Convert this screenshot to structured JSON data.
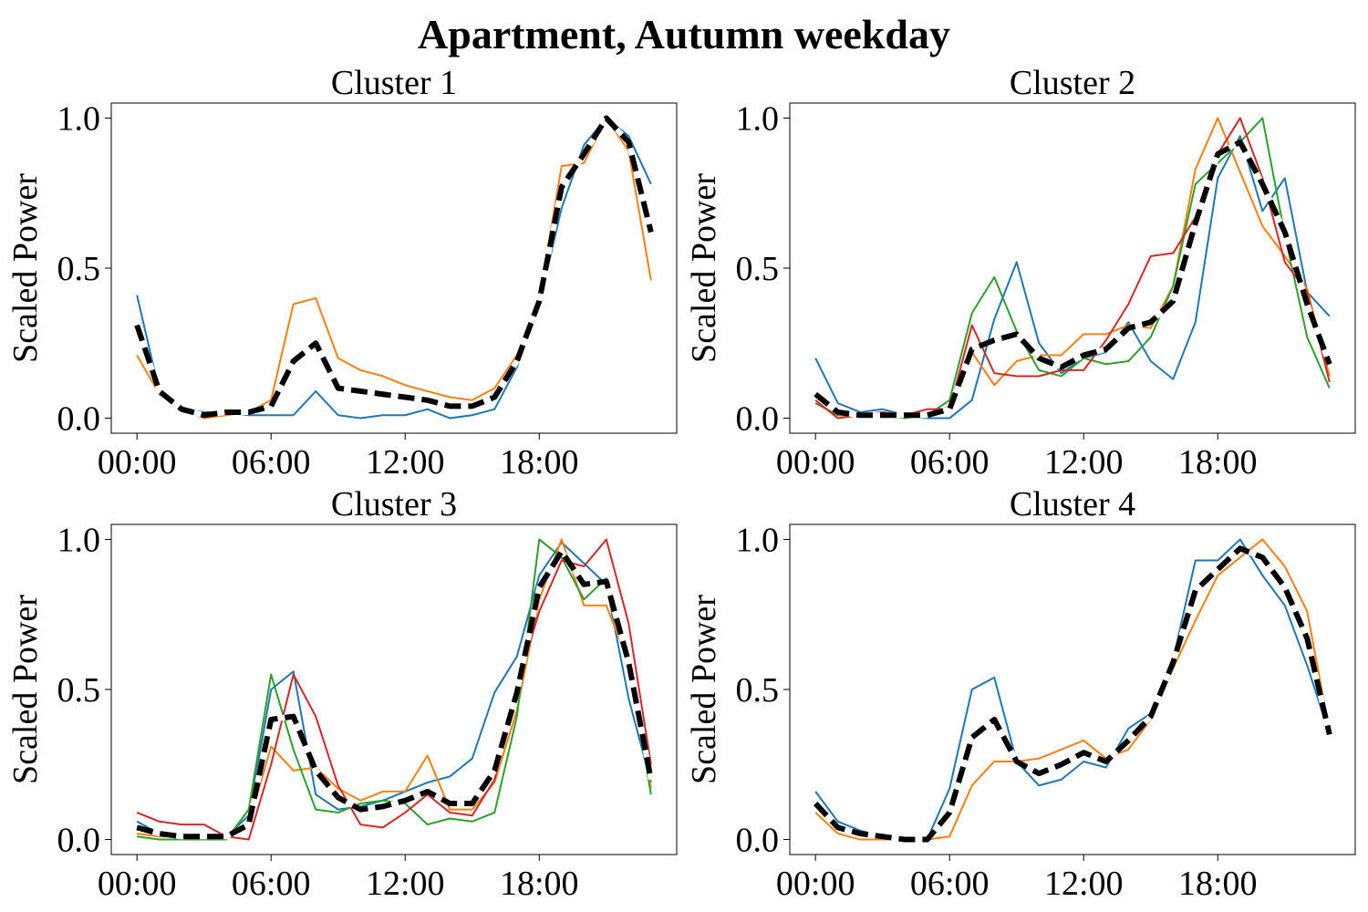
{
  "figure": {
    "suptitle": "Apartment, Autumn weekday"
  },
  "chart_data": [
    {
      "type": "line",
      "title": "Cluster 1",
      "xlabel": "",
      "ylabel": "Scaled Power",
      "x": [
        0,
        1,
        2,
        3,
        4,
        5,
        6,
        7,
        8,
        9,
        10,
        11,
        12,
        13,
        14,
        15,
        16,
        17,
        18,
        19,
        20,
        21,
        22,
        23
      ],
      "x_ticks": [
        0,
        6,
        12,
        18
      ],
      "x_tick_labels": [
        "00:00",
        "06:00",
        "12:00",
        "18:00"
      ],
      "y_ticks": [
        0.0,
        0.5,
        1.0
      ],
      "y_tick_labels": [
        "0.0",
        "0.5",
        "1.0"
      ],
      "xlim": [
        -1.15,
        24.15
      ],
      "ylim": [
        -0.05,
        1.05
      ],
      "grid": false,
      "series": [
        {
          "color": "#1f77b4",
          "style": "solid",
          "values": [
            0.41,
            0.09,
            0.03,
            0.02,
            0.02,
            0.01,
            0.01,
            0.01,
            0.09,
            0.01,
            0.0,
            0.01,
            0.01,
            0.03,
            0.0,
            0.01,
            0.03,
            0.17,
            0.38,
            0.7,
            0.91,
            1.0,
            0.94,
            0.78
          ]
        },
        {
          "color": "#ff7f0e",
          "style": "solid",
          "values": [
            0.21,
            0.08,
            0.03,
            0.0,
            0.01,
            0.02,
            0.06,
            0.38,
            0.4,
            0.2,
            0.16,
            0.14,
            0.11,
            0.09,
            0.07,
            0.06,
            0.1,
            0.21,
            0.4,
            0.84,
            0.85,
            1.0,
            0.89,
            0.46
          ]
        },
        {
          "color": "#000000",
          "style": "mean",
          "values": [
            0.31,
            0.09,
            0.03,
            0.01,
            0.02,
            0.02,
            0.04,
            0.19,
            0.25,
            0.1,
            0.09,
            0.08,
            0.07,
            0.06,
            0.04,
            0.04,
            0.07,
            0.19,
            0.39,
            0.77,
            0.88,
            1.0,
            0.92,
            0.62
          ]
        }
      ]
    },
    {
      "type": "line",
      "title": "Cluster 2",
      "xlabel": "",
      "ylabel": "Scaled Power",
      "x": [
        0,
        1,
        2,
        3,
        4,
        5,
        6,
        7,
        8,
        9,
        10,
        11,
        12,
        13,
        14,
        15,
        16,
        17,
        18,
        19,
        20,
        21,
        22,
        23
      ],
      "x_ticks": [
        0,
        6,
        12,
        18
      ],
      "x_tick_labels": [
        "00:00",
        "06:00",
        "12:00",
        "18:00"
      ],
      "y_ticks": [
        0.0,
        0.5,
        1.0
      ],
      "y_tick_labels": [
        "0.0",
        "0.5",
        "1.0"
      ],
      "xlim": [
        -1.15,
        24.15
      ],
      "ylim": [
        -0.05,
        1.05
      ],
      "grid": false,
      "series": [
        {
          "color": "#1f77b4",
          "style": "solid",
          "values": [
            0.2,
            0.05,
            0.02,
            0.03,
            0.01,
            0.0,
            0.0,
            0.06,
            0.33,
            0.52,
            0.25,
            0.15,
            0.2,
            0.22,
            0.32,
            0.19,
            0.13,
            0.32,
            0.8,
            0.94,
            0.69,
            0.8,
            0.42,
            0.34
          ]
        },
        {
          "color": "#ff7f0e",
          "style": "solid",
          "values": [
            0.05,
            0.01,
            0.01,
            0.02,
            0.0,
            0.01,
            0.04,
            0.22,
            0.11,
            0.19,
            0.21,
            0.21,
            0.28,
            0.28,
            0.31,
            0.3,
            0.44,
            0.83,
            1.0,
            0.82,
            0.64,
            0.54,
            0.43,
            0.14
          ]
        },
        {
          "color": "#2ca02c",
          "style": "solid",
          "values": [
            0.05,
            0.01,
            0.01,
            0.01,
            0.0,
            0.01,
            0.06,
            0.35,
            0.47,
            0.29,
            0.16,
            0.14,
            0.2,
            0.18,
            0.19,
            0.27,
            0.44,
            0.78,
            0.85,
            0.92,
            1.0,
            0.61,
            0.27,
            0.1
          ]
        },
        {
          "color": "#d62728",
          "style": "solid",
          "values": [
            0.06,
            0.0,
            0.01,
            0.02,
            0.01,
            0.03,
            0.03,
            0.31,
            0.15,
            0.14,
            0.14,
            0.16,
            0.16,
            0.26,
            0.38,
            0.54,
            0.55,
            0.67,
            0.88,
            1.0,
            0.8,
            0.52,
            0.42,
            0.12
          ]
        },
        {
          "color": "#000000",
          "style": "mean",
          "values": [
            0.08,
            0.02,
            0.01,
            0.01,
            0.01,
            0.01,
            0.03,
            0.23,
            0.26,
            0.28,
            0.2,
            0.17,
            0.21,
            0.23,
            0.3,
            0.32,
            0.39,
            0.65,
            0.88,
            0.92,
            0.78,
            0.62,
            0.38,
            0.18
          ]
        }
      ]
    },
    {
      "type": "line",
      "title": "Cluster 3",
      "xlabel": "",
      "ylabel": "Scaled Power",
      "x": [
        0,
        1,
        2,
        3,
        4,
        5,
        6,
        7,
        8,
        9,
        10,
        11,
        12,
        13,
        14,
        15,
        16,
        17,
        18,
        19,
        20,
        21,
        22,
        23
      ],
      "x_ticks": [
        0,
        6,
        12,
        18
      ],
      "x_tick_labels": [
        "00:00",
        "06:00",
        "12:00",
        "18:00"
      ],
      "y_ticks": [
        0.0,
        0.5,
        1.0
      ],
      "y_tick_labels": [
        "0.0",
        "0.5",
        "1.0"
      ],
      "xlim": [
        -1.15,
        24.15
      ],
      "ylim": [
        -0.05,
        1.05
      ],
      "grid": false,
      "series": [
        {
          "color": "#1f77b4",
          "style": "solid",
          "values": [
            0.06,
            0.02,
            0.01,
            0.01,
            0.01,
            0.08,
            0.5,
            0.56,
            0.15,
            0.1,
            0.11,
            0.13,
            0.16,
            0.19,
            0.21,
            0.27,
            0.49,
            0.61,
            0.88,
            0.99,
            0.92,
            0.85,
            0.47,
            0.19
          ]
        },
        {
          "color": "#ff7f0e",
          "style": "solid",
          "values": [
            0.02,
            0.01,
            0.01,
            0.0,
            0.01,
            0.05,
            0.31,
            0.23,
            0.24,
            0.17,
            0.13,
            0.16,
            0.16,
            0.28,
            0.1,
            0.1,
            0.19,
            0.43,
            0.8,
            1.0,
            0.78,
            0.78,
            0.59,
            0.17
          ]
        },
        {
          "color": "#2ca02c",
          "style": "solid",
          "values": [
            0.01,
            0.0,
            0.0,
            0.0,
            0.0,
            0.1,
            0.55,
            0.3,
            0.1,
            0.09,
            0.12,
            0.13,
            0.12,
            0.05,
            0.07,
            0.06,
            0.09,
            0.41,
            1.0,
            0.94,
            0.8,
            0.87,
            0.59,
            0.15
          ]
        },
        {
          "color": "#d62728",
          "style": "solid",
          "values": [
            0.09,
            0.06,
            0.05,
            0.05,
            0.01,
            0.0,
            0.25,
            0.55,
            0.41,
            0.18,
            0.05,
            0.04,
            0.09,
            0.15,
            0.09,
            0.08,
            0.2,
            0.51,
            0.76,
            0.93,
            0.91,
            1.0,
            0.72,
            0.25
          ]
        },
        {
          "color": "#000000",
          "style": "mean",
          "values": [
            0.04,
            0.02,
            0.01,
            0.01,
            0.01,
            0.05,
            0.4,
            0.41,
            0.23,
            0.14,
            0.1,
            0.11,
            0.13,
            0.16,
            0.12,
            0.12,
            0.23,
            0.49,
            0.84,
            0.96,
            0.85,
            0.86,
            0.59,
            0.2
          ]
        }
      ]
    },
    {
      "type": "line",
      "title": "Cluster 4",
      "xlabel": "",
      "ylabel": "Scaled Power",
      "x": [
        0,
        1,
        2,
        3,
        4,
        5,
        6,
        7,
        8,
        9,
        10,
        11,
        12,
        13,
        14,
        15,
        16,
        17,
        18,
        19,
        20,
        21,
        22,
        23
      ],
      "x_ticks": [
        0,
        6,
        12,
        18
      ],
      "x_tick_labels": [
        "00:00",
        "06:00",
        "12:00",
        "18:00"
      ],
      "y_ticks": [
        0.0,
        0.5,
        1.0
      ],
      "y_tick_labels": [
        "0.0",
        "0.5",
        "1.0"
      ],
      "xlim": [
        -1.15,
        24.15
      ],
      "ylim": [
        -0.05,
        1.05
      ],
      "grid": false,
      "series": [
        {
          "color": "#1f77b4",
          "style": "solid",
          "values": [
            0.16,
            0.06,
            0.03,
            0.01,
            0.0,
            0.0,
            0.17,
            0.5,
            0.54,
            0.26,
            0.18,
            0.2,
            0.26,
            0.24,
            0.37,
            0.42,
            0.6,
            0.93,
            0.93,
            1.0,
            0.88,
            0.78,
            0.58,
            0.35
          ]
        },
        {
          "color": "#ff7f0e",
          "style": "solid",
          "values": [
            0.09,
            0.02,
            0.0,
            0.0,
            0.0,
            0.0,
            0.01,
            0.18,
            0.26,
            0.26,
            0.27,
            0.3,
            0.33,
            0.27,
            0.3,
            0.4,
            0.57,
            0.73,
            0.88,
            0.94,
            1.0,
            0.91,
            0.76,
            0.36
          ]
        },
        {
          "color": "#000000",
          "style": "mean",
          "values": [
            0.12,
            0.04,
            0.02,
            0.01,
            0.0,
            0.0,
            0.09,
            0.34,
            0.4,
            0.26,
            0.22,
            0.25,
            0.29,
            0.26,
            0.33,
            0.41,
            0.59,
            0.83,
            0.9,
            0.97,
            0.94,
            0.84,
            0.67,
            0.35
          ]
        }
      ]
    }
  ]
}
